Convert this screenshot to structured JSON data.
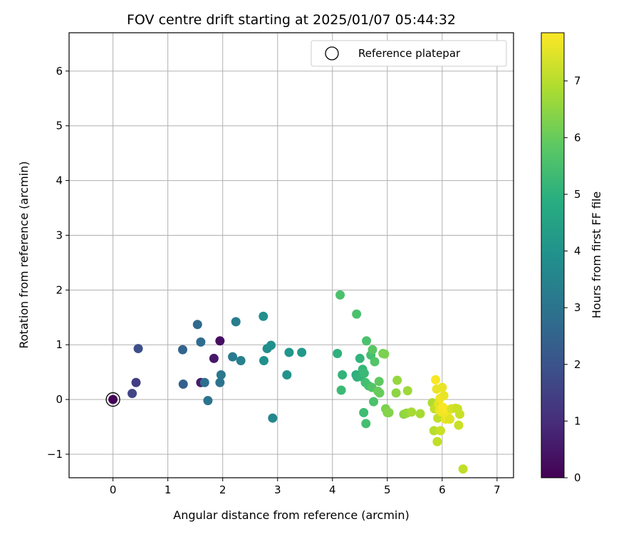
{
  "chart_data": {
    "type": "scatter",
    "title": "FOV centre drift starting at 2025/01/07 05:44:32",
    "xlabel": "Angular distance from reference (arcmin)",
    "ylabel": "Rotation from reference (arcmin)",
    "xlim": [
      -0.8,
      7.3
    ],
    "ylim": [
      -1.43,
      6.7
    ],
    "xticks": [
      "0",
      "1",
      "2",
      "3",
      "4",
      "5",
      "6",
      "7"
    ],
    "yticks": [
      "−1",
      "0",
      "1",
      "2",
      "3",
      "4",
      "5",
      "6"
    ],
    "grid": true,
    "legend": {
      "placement": "top-right",
      "entries": [
        "Reference platepar"
      ]
    },
    "reference_point": {
      "name": "Reference platepar",
      "x": 0,
      "y": 0
    },
    "colorbar": {
      "label": "Hours from first FF file",
      "colormap": "viridis",
      "range": [
        0,
        7.85
      ],
      "ticks": [
        "0",
        "1",
        "2",
        "3",
        "4",
        "5",
        "6",
        "7"
      ]
    },
    "points": [
      {
        "x": 0.0,
        "y": 0.0,
        "c": 0.05
      },
      {
        "x": 1.95,
        "y": 1.07,
        "c": 0.3
      },
      {
        "x": 1.84,
        "y": 0.75,
        "c": 0.5
      },
      {
        "x": 1.6,
        "y": 0.31,
        "c": 0.6
      },
      {
        "x": 0.42,
        "y": 0.31,
        "c": 1.4
      },
      {
        "x": 0.35,
        "y": 0.11,
        "c": 1.6
      },
      {
        "x": 0.46,
        "y": 0.93,
        "c": 1.9
      },
      {
        "x": 1.28,
        "y": 0.28,
        "c": 2.4
      },
      {
        "x": 1.27,
        "y": 0.91,
        "c": 2.5
      },
      {
        "x": 1.54,
        "y": 1.37,
        "c": 2.7
      },
      {
        "x": 1.6,
        "y": 1.05,
        "c": 2.8
      },
      {
        "x": 1.67,
        "y": 0.31,
        "c": 2.9
      },
      {
        "x": 1.73,
        "y": -0.02,
        "c": 3.0
      },
      {
        "x": 1.95,
        "y": 0.31,
        "c": 3.0
      },
      {
        "x": 1.97,
        "y": 0.45,
        "c": 3.1
      },
      {
        "x": 2.18,
        "y": 0.78,
        "c": 3.2
      },
      {
        "x": 2.24,
        "y": 1.42,
        "c": 3.3
      },
      {
        "x": 2.33,
        "y": 0.71,
        "c": 3.4
      },
      {
        "x": 2.74,
        "y": 1.52,
        "c": 3.9
      },
      {
        "x": 2.75,
        "y": 0.71,
        "c": 3.9
      },
      {
        "x": 2.81,
        "y": 0.93,
        "c": 3.8
      },
      {
        "x": 2.88,
        "y": 0.99,
        "c": 3.9
      },
      {
        "x": 2.91,
        "y": -0.34,
        "c": 3.6
      },
      {
        "x": 3.17,
        "y": 0.45,
        "c": 4.0
      },
      {
        "x": 3.21,
        "y": 0.86,
        "c": 4.1
      },
      {
        "x": 3.44,
        "y": 0.86,
        "c": 4.2
      },
      {
        "x": 4.09,
        "y": 0.84,
        "c": 5.0
      },
      {
        "x": 4.14,
        "y": 1.91,
        "c": 5.6
      },
      {
        "x": 4.16,
        "y": 0.17,
        "c": 5.3
      },
      {
        "x": 4.18,
        "y": 0.45,
        "c": 5.1
      },
      {
        "x": 4.44,
        "y": 1.56,
        "c": 5.6
      },
      {
        "x": 4.43,
        "y": 0.45,
        "c": 4.9
      },
      {
        "x": 4.45,
        "y": 0.41,
        "c": 5.0
      },
      {
        "x": 4.5,
        "y": 0.75,
        "c": 5.1
      },
      {
        "x": 4.52,
        "y": 0.42,
        "c": 5.1
      },
      {
        "x": 4.55,
        "y": 0.55,
        "c": 5.2
      },
      {
        "x": 4.57,
        "y": -0.24,
        "c": 5.4
      },
      {
        "x": 4.58,
        "y": 0.48,
        "c": 5.3
      },
      {
        "x": 4.6,
        "y": 0.31,
        "c": 5.5
      },
      {
        "x": 4.61,
        "y": -0.44,
        "c": 5.5
      },
      {
        "x": 4.62,
        "y": 1.07,
        "c": 5.6
      },
      {
        "x": 4.66,
        "y": 0.25,
        "c": 5.5
      },
      {
        "x": 4.7,
        "y": 0.81,
        "c": 5.5
      },
      {
        "x": 4.72,
        "y": 0.22,
        "c": 5.7
      },
      {
        "x": 4.73,
        "y": 0.91,
        "c": 5.8
      },
      {
        "x": 4.75,
        "y": -0.04,
        "c": 5.6
      },
      {
        "x": 4.77,
        "y": 0.69,
        "c": 5.7
      },
      {
        "x": 4.83,
        "y": 0.15,
        "c": 6.0
      },
      {
        "x": 4.85,
        "y": 0.33,
        "c": 5.9
      },
      {
        "x": 4.86,
        "y": 0.12,
        "c": 6.0
      },
      {
        "x": 4.92,
        "y": 0.84,
        "c": 6.2
      },
      {
        "x": 4.95,
        "y": 0.83,
        "c": 6.3
      },
      {
        "x": 4.97,
        "y": -0.17,
        "c": 6.3
      },
      {
        "x": 5.0,
        "y": -0.24,
        "c": 6.4
      },
      {
        "x": 5.03,
        "y": -0.24,
        "c": 6.4
      },
      {
        "x": 5.16,
        "y": 0.12,
        "c": 6.5
      },
      {
        "x": 5.18,
        "y": 0.35,
        "c": 6.6
      },
      {
        "x": 5.3,
        "y": -0.27,
        "c": 6.5
      },
      {
        "x": 5.35,
        "y": -0.25,
        "c": 6.6
      },
      {
        "x": 5.37,
        "y": 0.16,
        "c": 6.7
      },
      {
        "x": 5.44,
        "y": -0.23,
        "c": 6.8
      },
      {
        "x": 5.6,
        "y": -0.26,
        "c": 6.8
      },
      {
        "x": 5.82,
        "y": -0.06,
        "c": 6.9
      },
      {
        "x": 5.85,
        "y": -0.57,
        "c": 7.0
      },
      {
        "x": 5.86,
        "y": -0.17,
        "c": 7.1
      },
      {
        "x": 5.88,
        "y": 0.36,
        "c": 7.8
      },
      {
        "x": 5.9,
        "y": 0.19,
        "c": 7.6
      },
      {
        "x": 5.91,
        "y": -0.77,
        "c": 7.1
      },
      {
        "x": 5.92,
        "y": -0.34,
        "c": 7.1
      },
      {
        "x": 5.93,
        "y": -0.08,
        "c": 7.5
      },
      {
        "x": 5.95,
        "y": -0.19,
        "c": 7.6
      },
      {
        "x": 5.96,
        "y": 0.02,
        "c": 7.7
      },
      {
        "x": 5.97,
        "y": -0.57,
        "c": 7.2
      },
      {
        "x": 5.99,
        "y": -0.23,
        "c": 7.7
      },
      {
        "x": 6.0,
        "y": 0.22,
        "c": 7.6
      },
      {
        "x": 6.01,
        "y": -0.14,
        "c": 7.8
      },
      {
        "x": 6.03,
        "y": 0.07,
        "c": 7.6
      },
      {
        "x": 6.04,
        "y": -0.24,
        "c": 7.7
      },
      {
        "x": 6.06,
        "y": -0.36,
        "c": 7.6
      },
      {
        "x": 6.08,
        "y": -0.19,
        "c": 7.8
      },
      {
        "x": 6.1,
        "y": -0.31,
        "c": 7.7
      },
      {
        "x": 6.14,
        "y": -0.36,
        "c": 7.5
      },
      {
        "x": 6.17,
        "y": -0.17,
        "c": 7.4
      },
      {
        "x": 6.24,
        "y": -0.16,
        "c": 7.3
      },
      {
        "x": 6.28,
        "y": -0.17,
        "c": 7.2
      },
      {
        "x": 6.3,
        "y": -0.47,
        "c": 7.2
      },
      {
        "x": 6.32,
        "y": -0.27,
        "c": 7.2
      },
      {
        "x": 6.38,
        "y": -1.27,
        "c": 7.1
      }
    ]
  }
}
